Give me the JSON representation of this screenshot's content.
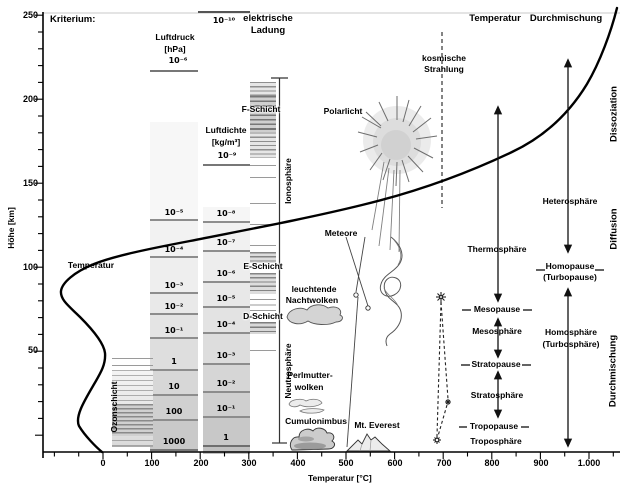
{
  "header": {
    "kriterium": "Kriterium:",
    "temperatur": "Temperatur",
    "durchmischung": "Durchmischung"
  },
  "axis": {
    "y_label": "Höhe [km]",
    "x_label": "Temperatur [°C]",
    "y_ticks": [
      "250",
      "200",
      "150",
      "100",
      "50"
    ],
    "x_ticks": [
      "0",
      "100",
      "200",
      "300",
      "400",
      "500",
      "600",
      "700",
      "800",
      "900",
      "1.000"
    ]
  },
  "pressure_col": {
    "title": "Luftdruck",
    "unit": "[hPa]",
    "top_value": "10⁻⁶",
    "values": [
      "10⁻⁵",
      "10⁻⁴",
      "10⁻³",
      "10⁻²",
      "10⁻¹",
      "1",
      "10",
      "100",
      "1000"
    ]
  },
  "density_col": {
    "title": "Luftdichte",
    "unit": "[kg/m³]",
    "top_value": "10⁻¹⁰",
    "second_value": "10⁻⁹",
    "values": [
      "10⁻⁸",
      "10⁻⁷",
      "10⁻⁶",
      "10⁻⁵",
      "10⁻⁴",
      "10⁻³",
      "10⁻²",
      "10⁻¹",
      "1"
    ]
  },
  "charge_col": {
    "title_line1": "elektrische",
    "title_line2": "Ladung",
    "f_layer": "F-Schicht",
    "e_layer": "E-Schicht",
    "d_layer": "D-Schicht",
    "ionosphere": "Ionosphäre",
    "neutrosphere": "Neutrosphäre"
  },
  "curve_label": "Temperatur",
  "ozone_label": "Ozonschicht",
  "phenomena": {
    "polarlicht": "Polarlicht",
    "cosmic_line1": "kosmische",
    "cosmic_line2": "Strahlung",
    "meteors": "Meteore",
    "noctilucent_line1": "leuchtende",
    "noctilucent_line2": "Nachtwolken",
    "nacreous_line1": "Perlmutter-",
    "nacreous_line2": "wolken",
    "cumulonimbus": "Cumulonimbus",
    "everest": "Mt. Everest"
  },
  "temp_layers": {
    "thermosphere": "Thermosphäre",
    "mesopause": "Mesopause",
    "mesosphere": "Mesosphäre",
    "stratopause": "Stratopause",
    "stratosphere": "Stratosphäre",
    "tropopause": "Tropopause",
    "troposphere": "Troposphäre"
  },
  "mix_layers": {
    "heterosphere": "Heterosphäre",
    "homopause": "Homopause",
    "homopause_alt": "(Turbopause)",
    "homosphere": "Homosphäre",
    "homosphere_alt": "(Turbosphäre)"
  },
  "right_edge": {
    "dissociation": "Dissoziation",
    "diffusion": "Diffusion",
    "mixing": "Durchmischung"
  },
  "colors": {
    "ink": "#000000",
    "band_line": "#8d8d8d",
    "band_light": "#f6f6f6",
    "band_dark": "#c8c8c8"
  },
  "chart_data": {
    "type": "line",
    "xlabel": "Temperatur [°C]",
    "ylabel": "Höhe [km]",
    "xlim": [
      -150,
      1060
    ],
    "ylim": [
      0,
      250
    ],
    "x_ticks": [
      0,
      100,
      200,
      300,
      400,
      500,
      600,
      700,
      800,
      900,
      1000
    ],
    "y_ticks": [
      50,
      100,
      150,
      200,
      250
    ],
    "grid": "off",
    "series": [
      {
        "name": "Temperatur",
        "points_temp_vs_km": [
          [
            -5,
            0
          ],
          [
            -55,
            12
          ],
          [
            -20,
            30
          ],
          [
            0,
            47
          ],
          [
            -50,
            70
          ],
          [
            -90,
            85
          ],
          [
            -60,
            98
          ],
          [
            50,
            107
          ],
          [
            300,
            122
          ],
          [
            530,
            138
          ],
          [
            760,
            159
          ],
          [
            910,
            182
          ],
          [
            1000,
            222
          ],
          [
            1045,
            253
          ]
        ]
      }
    ],
    "pressure_scale_hPa_at_km": [
      [
        "10⁻⁶",
        216
      ],
      [
        "10⁻⁵",
        128
      ],
      [
        "10⁻⁴",
        106
      ],
      [
        "10⁻³",
        85
      ],
      [
        "10⁻²",
        72
      ],
      [
        "10⁻¹",
        58
      ],
      [
        "1",
        39
      ],
      [
        "10",
        24
      ],
      [
        "100",
        9
      ],
      [
        "1000",
        0
      ]
    ],
    "density_scale_kg_m3_at_km": [
      [
        "10⁻¹⁰",
        251
      ],
      [
        "10⁻⁹",
        160
      ],
      [
        "10⁻⁸",
        127
      ],
      [
        "10⁻⁷",
        110
      ],
      [
        "10⁻⁶",
        91
      ],
      [
        "10⁻⁵",
        76
      ],
      [
        "10⁻⁴",
        61
      ],
      [
        "10⁻³",
        42
      ],
      [
        "10⁻²",
        26
      ],
      [
        "10⁻¹",
        11
      ],
      [
        "1",
        0
      ]
    ],
    "boundaries_drawn_km": {
      "homopause": 98,
      "mesopause": 74,
      "stratopause": 41,
      "tropopause": 8
    }
  }
}
